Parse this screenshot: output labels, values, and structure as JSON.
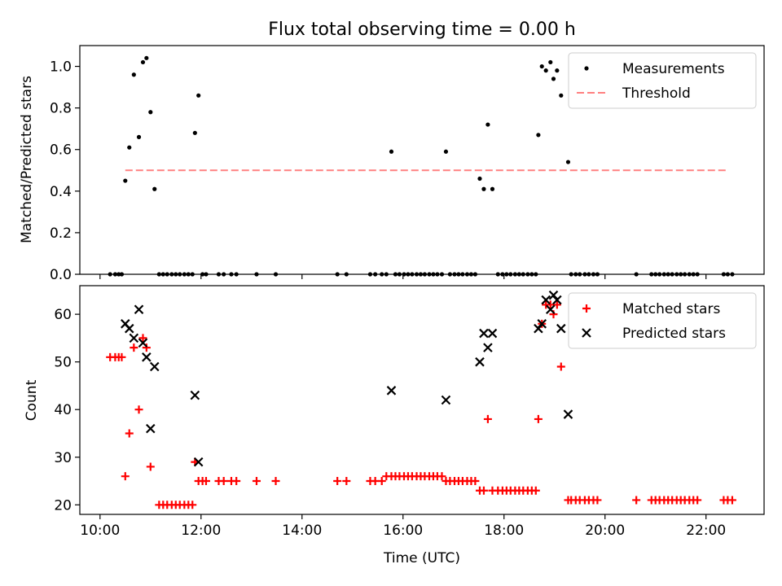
{
  "chart_data": [
    {
      "type": "scatter",
      "title": "Flux total observing time = 0.00 h",
      "ylabel": "Matched/Predicted stars",
      "xlabel": "",
      "xlim_hours": [
        9.6,
        23.15
      ],
      "ylim": [
        0,
        1.1
      ],
      "yticks": [
        0.0,
        0.2,
        0.4,
        0.6,
        0.8,
        1.0
      ],
      "ytick_labels": [
        "0.0",
        "0.2",
        "0.4",
        "0.6",
        "0.8",
        "1.0"
      ],
      "xticks_hours": [
        10,
        12,
        14,
        16,
        18,
        20,
        22
      ],
      "grid": false,
      "legend_position": "top-right",
      "series": [
        {
          "name": "Measurements",
          "marker": "dot",
          "color": "#000000",
          "points": [
            [
              10.2,
              0
            ],
            [
              10.3,
              0
            ],
            [
              10.37,
              0
            ],
            [
              10.43,
              0
            ],
            [
              10.5,
              0.45
            ],
            [
              10.58,
              0.61
            ],
            [
              10.67,
              0.96
            ],
            [
              10.77,
              0.66
            ],
            [
              10.85,
              1.02
            ],
            [
              10.92,
              1.04
            ],
            [
              11.0,
              0.78
            ],
            [
              11.08,
              0.41
            ],
            [
              11.17,
              0
            ],
            [
              11.25,
              0
            ],
            [
              11.33,
              0
            ],
            [
              11.42,
              0
            ],
            [
              11.5,
              0
            ],
            [
              11.58,
              0
            ],
            [
              11.67,
              0
            ],
            [
              11.75,
              0
            ],
            [
              11.83,
              0
            ],
            [
              11.88,
              0.68
            ],
            [
              11.95,
              0.86
            ],
            [
              12.03,
              0
            ],
            [
              12.1,
              0
            ],
            [
              12.35,
              0
            ],
            [
              12.45,
              0
            ],
            [
              12.6,
              0
            ],
            [
              12.7,
              0
            ],
            [
              13.1,
              0
            ],
            [
              13.48,
              0
            ],
            [
              14.7,
              0
            ],
            [
              14.88,
              0
            ],
            [
              15.35,
              0
            ],
            [
              15.45,
              0
            ],
            [
              15.58,
              0
            ],
            [
              15.67,
              0
            ],
            [
              15.77,
              0.59
            ],
            [
              15.85,
              0
            ],
            [
              15.93,
              0
            ],
            [
              16.02,
              0
            ],
            [
              16.1,
              0
            ],
            [
              16.18,
              0
            ],
            [
              16.27,
              0
            ],
            [
              16.35,
              0
            ],
            [
              16.43,
              0
            ],
            [
              16.52,
              0
            ],
            [
              16.6,
              0
            ],
            [
              16.68,
              0
            ],
            [
              16.77,
              0
            ],
            [
              16.85,
              0.59
            ],
            [
              16.93,
              0
            ],
            [
              17.02,
              0
            ],
            [
              17.1,
              0
            ],
            [
              17.18,
              0
            ],
            [
              17.27,
              0
            ],
            [
              17.35,
              0
            ],
            [
              17.43,
              0
            ],
            [
              17.52,
              0.46
            ],
            [
              17.6,
              0.41
            ],
            [
              17.68,
              0.72
            ],
            [
              17.77,
              0.41
            ],
            [
              17.88,
              0
            ],
            [
              17.97,
              0
            ],
            [
              18.05,
              0
            ],
            [
              18.13,
              0
            ],
            [
              18.22,
              0
            ],
            [
              18.3,
              0
            ],
            [
              18.38,
              0
            ],
            [
              18.47,
              0
            ],
            [
              18.55,
              0
            ],
            [
              18.63,
              0
            ],
            [
              18.68,
              0.67
            ],
            [
              18.75,
              1.0
            ],
            [
              18.83,
              0.98
            ],
            [
              18.92,
              1.02
            ],
            [
              18.98,
              0.94
            ],
            [
              19.05,
              0.98
            ],
            [
              19.13,
              0.86
            ],
            [
              19.27,
              0.54
            ],
            [
              19.33,
              0
            ],
            [
              19.42,
              0
            ],
            [
              19.5,
              0
            ],
            [
              19.6,
              0
            ],
            [
              19.68,
              0
            ],
            [
              19.77,
              0
            ],
            [
              19.85,
              0
            ],
            [
              20.62,
              0
            ],
            [
              20.92,
              0
            ],
            [
              21.0,
              0
            ],
            [
              21.08,
              0
            ],
            [
              21.17,
              0
            ],
            [
              21.25,
              0
            ],
            [
              21.33,
              0
            ],
            [
              21.42,
              0
            ],
            [
              21.5,
              0
            ],
            [
              21.58,
              0
            ],
            [
              21.67,
              0
            ],
            [
              21.75,
              0
            ],
            [
              21.83,
              0
            ],
            [
              22.35,
              0
            ],
            [
              22.43,
              0
            ],
            [
              22.52,
              0
            ]
          ]
        },
        {
          "name": "Threshold",
          "marker": "dashed-line",
          "color": "#ff8080",
          "points": [
            [
              10.5,
              0.5
            ],
            [
              22.45,
              0.5
            ]
          ]
        }
      ]
    },
    {
      "type": "scatter",
      "title": "",
      "xlabel": "Time (UTC)",
      "ylabel": "Count",
      "xlim_hours": [
        9.6,
        23.15
      ],
      "ylim": [
        18,
        66
      ],
      "yticks": [
        20,
        30,
        40,
        50,
        60
      ],
      "ytick_labels": [
        "20",
        "30",
        "40",
        "50",
        "60"
      ],
      "xticks_hours": [
        10,
        12,
        14,
        16,
        18,
        20,
        22
      ],
      "xtick_labels": [
        "10:00",
        "12:00",
        "14:00",
        "16:00",
        "18:00",
        "20:00",
        "22:00"
      ],
      "grid": false,
      "legend_position": "top-right",
      "series": [
        {
          "name": "Matched stars",
          "marker": "plus",
          "color": "#ff0000",
          "points": [
            [
              10.2,
              51
            ],
            [
              10.3,
              51
            ],
            [
              10.37,
              51
            ],
            [
              10.43,
              51
            ],
            [
              10.5,
              26
            ],
            [
              10.58,
              35
            ],
            [
              10.67,
              53
            ],
            [
              10.77,
              40
            ],
            [
              10.85,
              55
            ],
            [
              10.92,
              53
            ],
            [
              11.0,
              28
            ],
            [
              11.17,
              20
            ],
            [
              11.25,
              20
            ],
            [
              11.33,
              20
            ],
            [
              11.42,
              20
            ],
            [
              11.5,
              20
            ],
            [
              11.58,
              20
            ],
            [
              11.67,
              20
            ],
            [
              11.75,
              20
            ],
            [
              11.83,
              20
            ],
            [
              11.88,
              29
            ],
            [
              11.95,
              25
            ],
            [
              12.03,
              25
            ],
            [
              12.1,
              25
            ],
            [
              12.35,
              25
            ],
            [
              12.45,
              25
            ],
            [
              12.6,
              25
            ],
            [
              12.7,
              25
            ],
            [
              13.1,
              25
            ],
            [
              13.48,
              25
            ],
            [
              14.7,
              25
            ],
            [
              14.88,
              25
            ],
            [
              15.35,
              25
            ],
            [
              15.45,
              25
            ],
            [
              15.58,
              25
            ],
            [
              15.67,
              26
            ],
            [
              15.77,
              26
            ],
            [
              15.85,
              26
            ],
            [
              15.93,
              26
            ],
            [
              16.02,
              26
            ],
            [
              16.1,
              26
            ],
            [
              16.18,
              26
            ],
            [
              16.27,
              26
            ],
            [
              16.35,
              26
            ],
            [
              16.43,
              26
            ],
            [
              16.52,
              26
            ],
            [
              16.6,
              26
            ],
            [
              16.68,
              26
            ],
            [
              16.77,
              26
            ],
            [
              16.85,
              25
            ],
            [
              16.93,
              25
            ],
            [
              17.02,
              25
            ],
            [
              17.1,
              25
            ],
            [
              17.18,
              25
            ],
            [
              17.27,
              25
            ],
            [
              17.35,
              25
            ],
            [
              17.43,
              25
            ],
            [
              17.52,
              23
            ],
            [
              17.6,
              23
            ],
            [
              17.68,
              38
            ],
            [
              17.77,
              23
            ],
            [
              17.88,
              23
            ],
            [
              17.97,
              23
            ],
            [
              18.05,
              23
            ],
            [
              18.13,
              23
            ],
            [
              18.22,
              23
            ],
            [
              18.3,
              23
            ],
            [
              18.38,
              23
            ],
            [
              18.47,
              23
            ],
            [
              18.55,
              23
            ],
            [
              18.63,
              23
            ],
            [
              18.68,
              38
            ],
            [
              18.75,
              58
            ],
            [
              18.83,
              62
            ],
            [
              18.92,
              62
            ],
            [
              18.98,
              60
            ],
            [
              19.05,
              62
            ],
            [
              19.13,
              49
            ],
            [
              19.27,
              21
            ],
            [
              19.33,
              21
            ],
            [
              19.42,
              21
            ],
            [
              19.5,
              21
            ],
            [
              19.6,
              21
            ],
            [
              19.68,
              21
            ],
            [
              19.77,
              21
            ],
            [
              19.85,
              21
            ],
            [
              20.62,
              21
            ],
            [
              20.92,
              21
            ],
            [
              21.0,
              21
            ],
            [
              21.08,
              21
            ],
            [
              21.17,
              21
            ],
            [
              21.25,
              21
            ],
            [
              21.33,
              21
            ],
            [
              21.42,
              21
            ],
            [
              21.5,
              21
            ],
            [
              21.58,
              21
            ],
            [
              21.67,
              21
            ],
            [
              21.75,
              21
            ],
            [
              21.83,
              21
            ],
            [
              22.35,
              21
            ],
            [
              22.43,
              21
            ],
            [
              22.52,
              21
            ]
          ]
        },
        {
          "name": "Predicted stars",
          "marker": "x",
          "color": "#000000",
          "points": [
            [
              10.5,
              58
            ],
            [
              10.58,
              57
            ],
            [
              10.67,
              55
            ],
            [
              10.77,
              61
            ],
            [
              10.85,
              54
            ],
            [
              10.92,
              51
            ],
            [
              11.0,
              36
            ],
            [
              11.08,
              49
            ],
            [
              11.88,
              43
            ],
            [
              11.95,
              29
            ],
            [
              15.77,
              44
            ],
            [
              16.85,
              42
            ],
            [
              17.52,
              50
            ],
            [
              17.6,
              56
            ],
            [
              17.68,
              53
            ],
            [
              17.77,
              56
            ],
            [
              18.68,
              57
            ],
            [
              18.75,
              58
            ],
            [
              18.83,
              63
            ],
            [
              18.92,
              61
            ],
            [
              18.98,
              64
            ],
            [
              19.05,
              63
            ],
            [
              19.13,
              57
            ],
            [
              19.27,
              39
            ]
          ]
        }
      ]
    }
  ]
}
